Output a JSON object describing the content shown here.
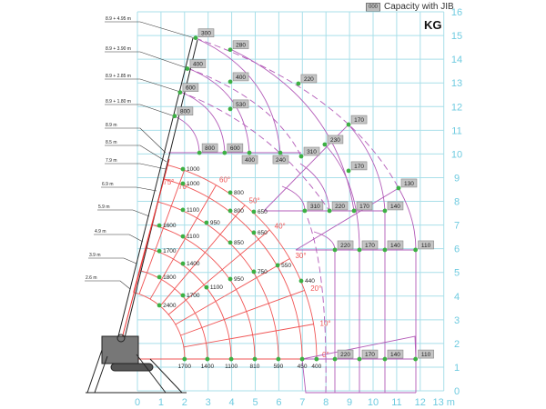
{
  "chart_data": {
    "type": "scatter",
    "unit": "KG",
    "legend": {
      "box_sample": "000",
      "label": "Capacity with JIB",
      "placement": "top-right"
    },
    "x_axis": {
      "range": [
        0,
        13
      ],
      "ticks": [
        "0",
        "1",
        "2",
        "3",
        "4",
        "5",
        "6",
        "7",
        "8",
        "9",
        "10",
        "11",
        "12",
        "13 m"
      ]
    },
    "y_axis": {
      "range": [
        0,
        16
      ],
      "ticks": [
        "0",
        "1",
        "2",
        "3",
        "4",
        "5",
        "6",
        "7",
        "8",
        "9",
        "10",
        "11",
        "12",
        "13",
        "14",
        "15",
        "16"
      ],
      "position": "right"
    },
    "grid": true,
    "boom_lengths": [
      "8.9 + 4.95 m",
      "8.9 + 3.90 m",
      "8.9 + 2.85 m",
      "8.9 + 1.80 m",
      "8.9 m",
      "8.5 m",
      "7.9 m",
      "6.9 m",
      "5.9 m",
      "4.9 m",
      "3.9 m",
      "2.6 m"
    ],
    "boom_angles": [
      "75°",
      "70°",
      "60°",
      "50°",
      "40°",
      "30°",
      "20°",
      "10°",
      "0°"
    ],
    "main_boom_points": [
      {
        "x": 1.93,
        "y": 9.36,
        "kg": "1000"
      },
      {
        "x": 1.93,
        "y": 8.75,
        "kg": "1000"
      },
      {
        "x": 3.94,
        "y": 8.37,
        "kg": "800"
      },
      {
        "x": 1.93,
        "y": 7.64,
        "kg": "1100"
      },
      {
        "x": 3.94,
        "y": 7.6,
        "kg": "800"
      },
      {
        "x": 4.94,
        "y": 7.56,
        "kg": "650"
      },
      {
        "x": 0.93,
        "y": 6.98,
        "kg": "1600"
      },
      {
        "x": 2.93,
        "y": 7.1,
        "kg": "950"
      },
      {
        "x": 1.93,
        "y": 6.52,
        "kg": "1100"
      },
      {
        "x": 4.94,
        "y": 6.68,
        "kg": "650"
      },
      {
        "x": 3.94,
        "y": 6.26,
        "kg": "850"
      },
      {
        "x": 0.93,
        "y": 5.9,
        "kg": "1700"
      },
      {
        "x": 1.93,
        "y": 5.37,
        "kg": "1400"
      },
      {
        "x": 5.95,
        "y": 5.3,
        "kg": "550"
      },
      {
        "x": 4.94,
        "y": 5.03,
        "kg": "750"
      },
      {
        "x": 3.94,
        "y": 4.72,
        "kg": "950"
      },
      {
        "x": 0.93,
        "y": 4.8,
        "kg": "1800"
      },
      {
        "x": 6.95,
        "y": 4.64,
        "kg": "440"
      },
      {
        "x": 2.93,
        "y": 4.37,
        "kg": "1100"
      },
      {
        "x": 1.93,
        "y": 4.03,
        "kg": "1700"
      },
      {
        "x": 0.93,
        "y": 3.61,
        "kg": "2400"
      },
      {
        "x": 2.0,
        "y": 1.34,
        "kg": "1700"
      },
      {
        "x": 2.97,
        "y": 1.34,
        "kg": "1400"
      },
      {
        "x": 3.98,
        "y": 1.34,
        "kg": "1100"
      },
      {
        "x": 4.98,
        "y": 1.34,
        "kg": "810"
      },
      {
        "x": 5.98,
        "y": 1.34,
        "kg": "590"
      },
      {
        "x": 6.99,
        "y": 1.34,
        "kg": "450"
      },
      {
        "x": 7.6,
        "y": 1.34,
        "kg": "400"
      }
    ],
    "jib_points": [
      {
        "x": 2.47,
        "y": 14.9,
        "kg": "300"
      },
      {
        "x": 3.94,
        "y": 14.4,
        "kg": "280"
      },
      {
        "x": 6.83,
        "y": 12.97,
        "kg": "220"
      },
      {
        "x": 2.12,
        "y": 13.6,
        "kg": "400"
      },
      {
        "x": 3.94,
        "y": 13.05,
        "kg": "400"
      },
      {
        "x": 1.81,
        "y": 12.6,
        "kg": "600"
      },
      {
        "x": 3.94,
        "y": 11.9,
        "kg": "530"
      },
      {
        "x": 1.58,
        "y": 11.6,
        "kg": "800"
      },
      {
        "x": 2.63,
        "y": 10.05,
        "kg": "800"
      },
      {
        "x": 3.7,
        "y": 10.05,
        "kg": "600"
      },
      {
        "x": 4.75,
        "y": 10.05,
        "kg": "400"
      },
      {
        "x": 6.06,
        "y": 10.05,
        "kg": "240"
      },
      {
        "x": 6.95,
        "y": 9.9,
        "kg": "310"
      },
      {
        "x": 7.95,
        "y": 10.4,
        "kg": "230"
      },
      {
        "x": 8.96,
        "y": 11.24,
        "kg": "170"
      },
      {
        "x": 8.96,
        "y": 9.29,
        "kg": "170"
      },
      {
        "x": 11.08,
        "y": 8.56,
        "kg": "130"
      },
      {
        "x": 7.1,
        "y": 7.6,
        "kg": "310"
      },
      {
        "x": 8.15,
        "y": 7.6,
        "kg": "220"
      },
      {
        "x": 9.19,
        "y": 7.6,
        "kg": "170"
      },
      {
        "x": 10.5,
        "y": 7.6,
        "kg": "140"
      },
      {
        "x": 8.38,
        "y": 5.95,
        "kg": "220"
      },
      {
        "x": 9.42,
        "y": 5.95,
        "kg": "170"
      },
      {
        "x": 10.5,
        "y": 5.95,
        "kg": "140"
      },
      {
        "x": 11.8,
        "y": 5.95,
        "kg": "110"
      },
      {
        "x": 8.38,
        "y": 1.34,
        "kg": "220"
      },
      {
        "x": 9.42,
        "y": 1.34,
        "kg": "170"
      },
      {
        "x": 10.5,
        "y": 1.34,
        "kg": "140"
      },
      {
        "x": 11.8,
        "y": 1.34,
        "kg": "110"
      }
    ],
    "colors": {
      "grid": "#a9dfe9",
      "axis_text": "#6fcbe0",
      "main_boom": "#f05555",
      "jib": "#b35bb8",
      "point": "#3cb043",
      "jib_label_bg": "#c4c4c4"
    }
  }
}
